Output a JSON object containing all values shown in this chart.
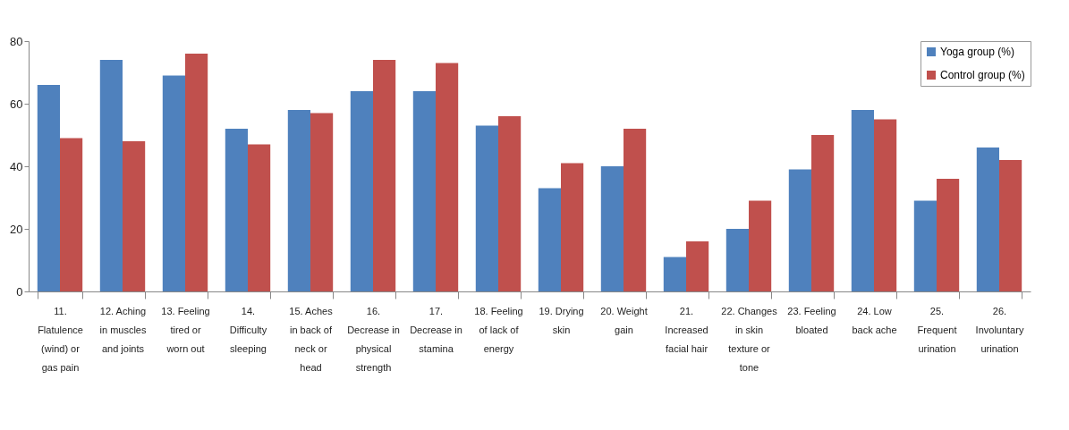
{
  "chart_data": {
    "type": "bar",
    "categories": [
      "11. Flatulence (wind) or gas pain",
      "12. Aching in muscles and joints",
      "13. Feeling tired or worn out",
      "14. Difficulty sleeping",
      "15. Aches in back of neck or head",
      "16. Decrease in physical strength",
      "17. Decrease in stamina",
      "18. Feeling of lack of energy",
      "19. Drying skin",
      "20. Weight gain",
      "21. Increased facial hair",
      "22. Changes in skin texture or tone",
      "23. Feeling bloated",
      "24. Low back ache",
      "25. Frequent urination",
      "26. Involuntary urination"
    ],
    "series": [
      {
        "name": "Yoga group (%)",
        "color": "#4f81bd",
        "values": [
          66,
          74,
          69,
          52,
          58,
          64,
          64,
          53,
          33,
          40,
          11,
          20,
          39,
          58,
          29,
          46
        ]
      },
      {
        "name": "Control group (%)",
        "color": "#c0504d",
        "values": [
          49,
          48,
          76,
          47,
          57,
          74,
          73,
          56,
          41,
          52,
          16,
          29,
          50,
          55,
          36,
          42
        ]
      }
    ],
    "ylim": [
      0,
      80
    ],
    "yticks": [
      0,
      20,
      40,
      60,
      80
    ],
    "grid": false,
    "legend": "top right"
  }
}
